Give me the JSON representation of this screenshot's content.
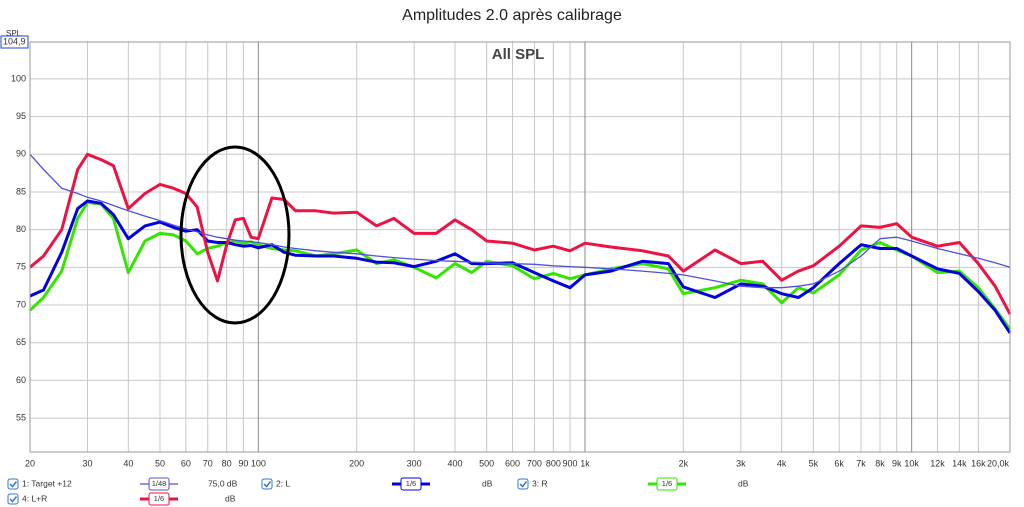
{
  "chart_data": {
    "type": "line",
    "title": "Amplitudes 2.0 après calibrage",
    "annotation": "All SPL",
    "y_label": "SPL",
    "xscale": "log",
    "grid": true,
    "xlim": [
      20,
      20000
    ],
    "ylim": [
      50.5,
      104.9
    ],
    "xticks": [
      20,
      30,
      40,
      50,
      60,
      70,
      80,
      90,
      100,
      200,
      300,
      400,
      500,
      600,
      700,
      800,
      900,
      {
        "value": 1000,
        "label": "1k"
      },
      {
        "value": 2000,
        "label": "2k"
      },
      {
        "value": 3000,
        "label": "3k"
      },
      {
        "value": 4000,
        "label": "4k"
      },
      {
        "value": 5000,
        "label": "5k"
      },
      {
        "value": 6000,
        "label": "6k"
      },
      {
        "value": 7000,
        "label": "7k"
      },
      {
        "value": 8000,
        "label": "8k"
      },
      {
        "value": 9000,
        "label": "9k"
      },
      {
        "value": 10000,
        "label": "10k"
      },
      {
        "value": 12000,
        "label": "12k"
      },
      {
        "value": 14000,
        "label": "14k"
      },
      {
        "value": 16000,
        "label": "16k"
      },
      {
        "value": 20000,
        "label": "20,0k"
      }
    ],
    "yticks": [
      55,
      60,
      65,
      70,
      75,
      80,
      85,
      90,
      95,
      100,
      {
        "value": 104.9,
        "label": "104,9"
      }
    ],
    "x": [
      20,
      22,
      25,
      28,
      30,
      33,
      36,
      40,
      45,
      50,
      55,
      60,
      65,
      70,
      75,
      80,
      85,
      90,
      95,
      100,
      110,
      120,
      130,
      150,
      170,
      200,
      230,
      260,
      300,
      350,
      400,
      450,
      500,
      600,
      700,
      800,
      900,
      1000,
      1200,
      1500,
      1800,
      2000,
      2500,
      3000,
      3500,
      4000,
      4500,
      5000,
      6000,
      7000,
      8000,
      9000,
      10000,
      12000,
      14000,
      16000,
      18000,
      20000
    ],
    "series": [
      {
        "name": "1: Target +12",
        "color": "#5050d8",
        "smoothing": "1/48",
        "offset_label": "75,0 dB",
        "width": 1.3,
        "values": [
          90,
          88,
          85.5,
          84.8,
          84.3,
          83.8,
          83.2,
          82.5,
          81.8,
          81.2,
          80.6,
          80.1,
          79.7,
          79.3,
          79,
          78.8,
          78.6,
          78.5,
          78.4,
          78.3,
          78,
          77.7,
          77.5,
          77.2,
          77,
          76.8,
          76.5,
          76.3,
          76.1,
          75.9,
          75.8,
          75.7,
          75.6,
          75.5,
          75.4,
          75.2,
          75.1,
          75,
          74.8,
          74.5,
          74.2,
          74,
          73.2,
          72.5,
          72.3,
          72.3,
          72.5,
          72.8,
          74.5,
          76.5,
          78.8,
          79,
          78.5,
          77.5,
          76.8,
          76.2,
          75.6,
          75
        ]
      },
      {
        "name": "2: L",
        "color": "#0000e0",
        "smoothing": "1/6",
        "offset_label": "dB",
        "width": 3,
        "values": [
          71.2,
          72,
          77,
          82.8,
          83.8,
          83.5,
          82,
          78.8,
          80.5,
          81,
          80.3,
          79.8,
          80,
          78.5,
          78.3,
          78.3,
          78,
          77.8,
          77.9,
          77.6,
          78,
          77,
          76.6,
          76.5,
          76.5,
          76.2,
          75.7,
          75.6,
          75.1,
          75.8,
          76.8,
          75.5,
          75.5,
          75.6,
          74.3,
          73.2,
          72.3,
          74,
          74.5,
          75.8,
          75.5,
          72.4,
          71,
          72.8,
          72.5,
          71.5,
          71,
          72.3,
          75.5,
          78,
          77.5,
          77.5,
          76.5,
          74.8,
          74.2,
          71.8,
          69.3,
          66.3
        ]
      },
      {
        "name": "3: R",
        "color": "#33e600",
        "smoothing": "1/6",
        "offset_label": "dB",
        "width": 3,
        "values": [
          69.3,
          71,
          74.5,
          81.5,
          83.6,
          83.4,
          81.5,
          74.3,
          78.5,
          79.5,
          79.3,
          78.5,
          76.8,
          77.5,
          77.8,
          78.3,
          78.5,
          78.2,
          78.4,
          78,
          77.5,
          77.3,
          77.2,
          76.5,
          76.8,
          77.3,
          75.5,
          76,
          75,
          73.6,
          75.5,
          74.3,
          75.8,
          75.2,
          73.5,
          74.2,
          73.5,
          74,
          74.8,
          75.5,
          74.8,
          71.5,
          72.3,
          73.3,
          72.8,
          70.3,
          72.3,
          71.6,
          74,
          77.3,
          78.3,
          77.3,
          76.5,
          74.3,
          74.5,
          72.3,
          69.5,
          66.8
        ]
      },
      {
        "name": "4: L+R",
        "color": "#ee1144",
        "smoothing": "1/6",
        "offset_label": "dB",
        "width": 3,
        "values": [
          75,
          76.5,
          80,
          88,
          90,
          89.3,
          88.5,
          82.8,
          84.8,
          86,
          85.5,
          84.8,
          83,
          77,
          73.2,
          78,
          81.3,
          81.5,
          79,
          78.8,
          84.2,
          84,
          82.5,
          82.5,
          82.2,
          82.3,
          80.5,
          81.5,
          79.5,
          79.5,
          81.3,
          80,
          78.5,
          78.2,
          77.3,
          77.8,
          77.2,
          78.2,
          77.7,
          77.2,
          76.5,
          74.5,
          77.3,
          75.5,
          75.8,
          73.3,
          74.5,
          75.2,
          77.8,
          80.5,
          80.3,
          80.8,
          79,
          77.8,
          78.3,
          75.5,
          72.5,
          68.8
        ]
      }
    ]
  }
}
